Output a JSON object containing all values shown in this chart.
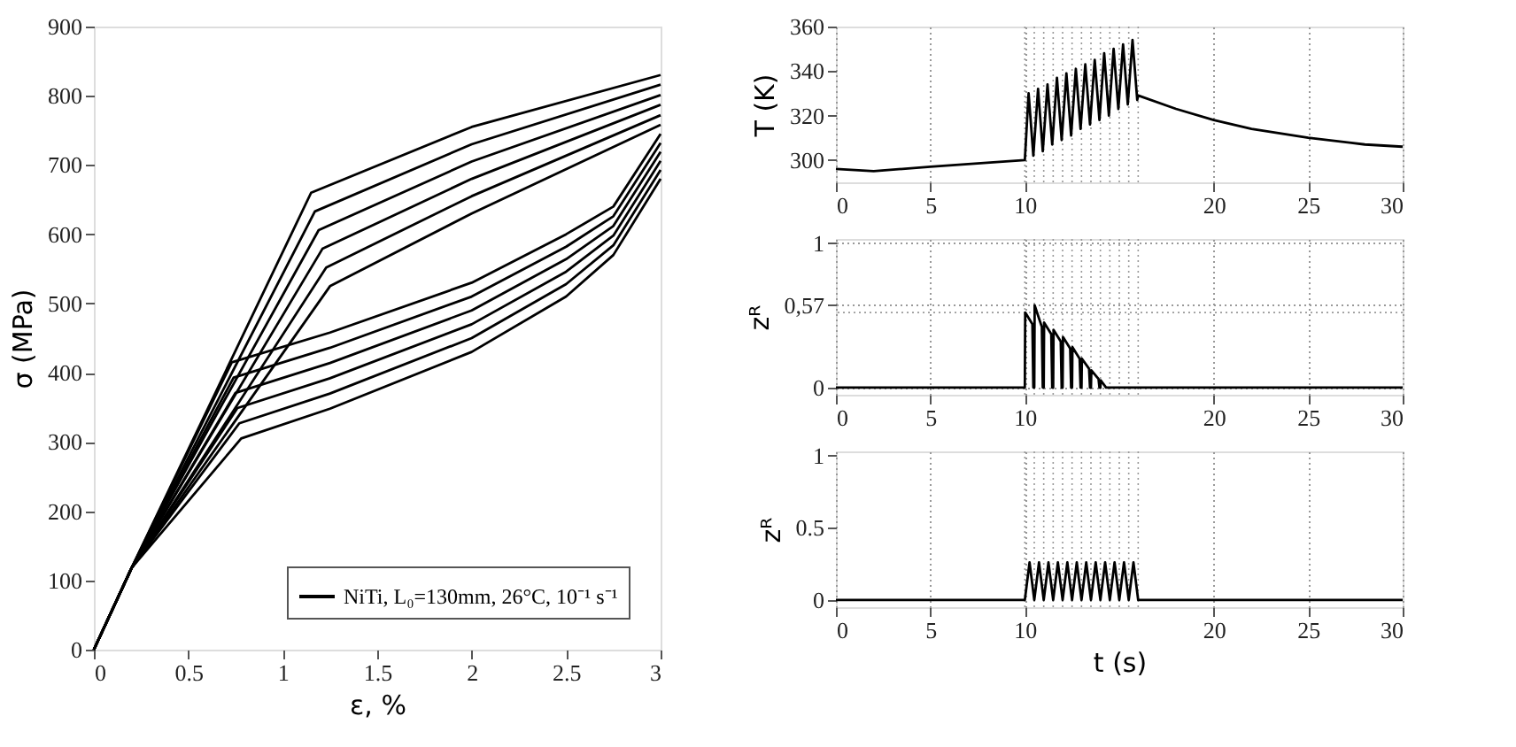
{
  "chart_data": [
    {
      "type": "line",
      "xlabel": "ε, %",
      "ylabel": "σ (MPa)",
      "xlim": [
        0,
        3
      ],
      "ylim": [
        0,
        900
      ],
      "xticks": [
        0,
        0.5,
        1,
        1.5,
        2,
        2.5,
        3
      ],
      "yticks": [
        0,
        100,
        200,
        300,
        400,
        500,
        600,
        700,
        800,
        900
      ],
      "legend": "bottom right",
      "grid": false,
      "series": [
        {
          "name": "NiTi, L₀=130mm, 26°C, 10⁻¹ s⁻¹",
          "color": "#000000",
          "x": [
            0,
            0.2,
            0.78,
            1.25,
            2,
            2.5,
            2.75,
            3,
            null,
            0,
            0.2,
            0.77,
            1.25,
            2,
            2.5,
            2.75,
            3,
            null,
            0,
            0.2,
            0.76,
            1.25,
            2,
            2.5,
            2.75,
            3,
            null,
            0,
            0.2,
            0.75,
            1.25,
            2,
            2.5,
            2.75,
            3,
            null,
            0,
            0.2,
            0.74,
            1.25,
            2,
            2.5,
            2.75,
            3,
            null,
            0,
            0.2,
            0.73,
            1.25,
            2,
            2.5,
            2.75,
            3,
            null,
            0,
            0.2,
            1.25,
            2,
            3,
            null,
            0,
            0.2,
            1.23,
            2,
            3,
            null,
            0,
            0.2,
            1.21,
            2,
            3,
            null,
            0,
            0.2,
            1.19,
            2,
            3,
            null,
            0,
            0.2,
            1.17,
            2,
            3,
            null,
            0,
            0.2,
            1.15,
            2,
            3
          ],
          "values": [
            0,
            118,
            305,
            348,
            430,
            510,
            570,
            680,
            null,
            0,
            118,
            327,
            370,
            450,
            528,
            584,
            693,
            null,
            0,
            118,
            349,
            392,
            470,
            546,
            598,
            706,
            null,
            0,
            118,
            371,
            414,
            490,
            564,
            612,
            719,
            null,
            0,
            118,
            393,
            436,
            510,
            582,
            626,
            732,
            null,
            0,
            118,
            415,
            458,
            530,
            600,
            640,
            745,
            null,
            0,
            118,
            525,
            630,
            758,
            null,
            0,
            118,
            552,
            655,
            772,
            null,
            0,
            118,
            579,
            680,
            787,
            null,
            0,
            118,
            606,
            705,
            801,
            null,
            0,
            118,
            633,
            730,
            816,
            null,
            0,
            118,
            660,
            755,
            830
          ]
        }
      ]
    },
    {
      "type": "line",
      "ylabel": "T (K)",
      "xlim": [
        0,
        30
      ],
      "ylim": [
        290,
        360
      ],
      "xticks": [
        0,
        5,
        10,
        20,
        25,
        30
      ],
      "yticks": [
        300,
        320,
        340,
        360
      ],
      "grid": "x",
      "ref_lines": [
        {
          "axis": "x",
          "value": 10,
          "line_style": "dotted",
          "color": "#999999"
        },
        {
          "axis": "x",
          "value": 10.5,
          "line_style": "dotted",
          "color": "#999999"
        },
        {
          "axis": "x",
          "value": 11,
          "line_style": "dotted",
          "color": "#999999"
        },
        {
          "axis": "x",
          "value": 11.5,
          "line_style": "dotted",
          "color": "#999999"
        },
        {
          "axis": "x",
          "value": 12,
          "line_style": "dotted",
          "color": "#999999"
        },
        {
          "axis": "x",
          "value": 12.5,
          "line_style": "dotted",
          "color": "#999999"
        },
        {
          "axis": "x",
          "value": 13,
          "line_style": "dotted",
          "color": "#999999"
        },
        {
          "axis": "x",
          "value": 13.5,
          "line_style": "dotted",
          "color": "#999999"
        },
        {
          "axis": "x",
          "value": 14,
          "line_style": "dotted",
          "color": "#999999"
        },
        {
          "axis": "x",
          "value": 14.5,
          "line_style": "dotted",
          "color": "#999999"
        },
        {
          "axis": "x",
          "value": 15,
          "line_style": "dotted",
          "color": "#999999"
        },
        {
          "axis": "x",
          "value": 15.5,
          "line_style": "dotted",
          "color": "#999999"
        },
        {
          "axis": "x",
          "value": 16,
          "line_style": "dotted",
          "color": "#999999"
        }
      ],
      "series": [
        {
          "color": "#000000",
          "x": [
            0,
            2,
            5,
            10,
            10.2,
            10.45,
            10.7,
            10.95,
            11.2,
            11.45,
            11.7,
            11.95,
            12.2,
            12.45,
            12.7,
            12.95,
            13.2,
            13.45,
            13.7,
            13.95,
            14.2,
            14.45,
            14.7,
            14.95,
            15.2,
            15.45,
            15.7,
            15.95,
            16,
            18,
            20,
            22,
            25,
            28,
            30
          ],
          "values": [
            296,
            295,
            297,
            300,
            330,
            302,
            332,
            304,
            334,
            307,
            337,
            309,
            339,
            311,
            341,
            314,
            343,
            316,
            345,
            318,
            348,
            320,
            350,
            323,
            352,
            325,
            354,
            327,
            329,
            323,
            318,
            314,
            310,
            307,
            306
          ]
        }
      ]
    },
    {
      "type": "line",
      "ylabel": "zᴿ",
      "xlim": [
        0,
        30
      ],
      "ylim": [
        -0.05,
        1.03
      ],
      "xticks": [
        0,
        5,
        10,
        20,
        25,
        30
      ],
      "yticks": [
        0,
        {
          "value": 0.57,
          "label": "0,57"
        },
        1
      ],
      "grid": true,
      "ref_lines": [
        {
          "axis": "y",
          "value": 0.52,
          "line_style": "dotted",
          "color": "#999999"
        },
        {
          "axis": "x",
          "value": 10,
          "line_style": "dotted",
          "color": "#999999"
        },
        {
          "axis": "x",
          "value": 10.5,
          "line_style": "dotted",
          "color": "#999999"
        },
        {
          "axis": "x",
          "value": 11,
          "line_style": "dotted",
          "color": "#999999"
        },
        {
          "axis": "x",
          "value": 11.5,
          "line_style": "dotted",
          "color": "#999999"
        },
        {
          "axis": "x",
          "value": 12,
          "line_style": "dotted",
          "color": "#999999"
        },
        {
          "axis": "x",
          "value": 12.5,
          "line_style": "dotted",
          "color": "#999999"
        },
        {
          "axis": "x",
          "value": 13,
          "line_style": "dotted",
          "color": "#999999"
        },
        {
          "axis": "x",
          "value": 13.5,
          "line_style": "dotted",
          "color": "#999999"
        },
        {
          "axis": "x",
          "value": 14,
          "line_style": "dotted",
          "color": "#999999"
        },
        {
          "axis": "x",
          "value": 14.5,
          "line_style": "dotted",
          "color": "#999999"
        },
        {
          "axis": "x",
          "value": 15,
          "line_style": "dotted",
          "color": "#999999"
        },
        {
          "axis": "x",
          "value": 15.5,
          "line_style": "dotted",
          "color": "#999999"
        },
        {
          "axis": "x",
          "value": 16,
          "line_style": "dotted",
          "color": "#999999"
        }
      ],
      "series": [
        {
          "color": "#000000",
          "x": [
            0,
            10,
            10.02,
            10.4,
            10.45,
            10.5,
            10.52,
            10.9,
            10.95,
            11,
            11.02,
            11.4,
            11.45,
            11.5,
            11.52,
            11.9,
            11.95,
            12,
            12.02,
            12.4,
            12.45,
            12.5,
            12.52,
            12.9,
            12.95,
            13,
            13.02,
            13.4,
            13.45,
            13.5,
            13.52,
            13.9,
            13.95,
            14,
            14.02,
            14.3,
            30
          ],
          "values": [
            0,
            0,
            0.52,
            0.44,
            0,
            0,
            0.57,
            0.42,
            0,
            0,
            0.45,
            0.37,
            0,
            0,
            0.4,
            0.32,
            0,
            0,
            0.35,
            0.27,
            0,
            0,
            0.28,
            0.2,
            0,
            0,
            0.2,
            0.13,
            0,
            0,
            0.12,
            0.06,
            0,
            0,
            0.05,
            0,
            0
          ]
        }
      ]
    },
    {
      "type": "line",
      "xlabel": "t (s)",
      "ylabel": "zᴿ",
      "xlim": [
        0,
        30
      ],
      "ylim": [
        -0.05,
        1.03
      ],
      "xticks": [
        0,
        5,
        10,
        20,
        25,
        30
      ],
      "yticks": [
        0,
        0.5,
        1
      ],
      "grid": "x",
      "ref_lines": [
        {
          "axis": "x",
          "value": 10,
          "line_style": "dotted",
          "color": "#999999"
        },
        {
          "axis": "x",
          "value": 10.5,
          "line_style": "dotted",
          "color": "#999999"
        },
        {
          "axis": "x",
          "value": 11,
          "line_style": "dotted",
          "color": "#999999"
        },
        {
          "axis": "x",
          "value": 11.5,
          "line_style": "dotted",
          "color": "#999999"
        },
        {
          "axis": "x",
          "value": 12,
          "line_style": "dotted",
          "color": "#999999"
        },
        {
          "axis": "x",
          "value": 12.5,
          "line_style": "dotted",
          "color": "#999999"
        },
        {
          "axis": "x",
          "value": 13,
          "line_style": "dotted",
          "color": "#999999"
        },
        {
          "axis": "x",
          "value": 13.5,
          "line_style": "dotted",
          "color": "#999999"
        },
        {
          "axis": "x",
          "value": 14,
          "line_style": "dotted",
          "color": "#999999"
        },
        {
          "axis": "x",
          "value": 14.5,
          "line_style": "dotted",
          "color": "#999999"
        },
        {
          "axis": "x",
          "value": 15,
          "line_style": "dotted",
          "color": "#999999"
        },
        {
          "axis": "x",
          "value": 15.5,
          "line_style": "dotted",
          "color": "#999999"
        },
        {
          "axis": "x",
          "value": 16,
          "line_style": "dotted",
          "color": "#999999"
        }
      ],
      "series": [
        {
          "color": "#000000",
          "x": [
            0,
            10,
            10.25,
            10.5,
            10.75,
            11,
            11.25,
            11.5,
            11.75,
            12,
            12.25,
            12.5,
            12.75,
            13,
            13.25,
            13.5,
            13.75,
            14,
            14.25,
            14.5,
            14.75,
            15,
            15.25,
            15.5,
            15.75,
            16,
            30
          ],
          "values": [
            0,
            0,
            0.26,
            0,
            0.26,
            0,
            0.26,
            0,
            0.26,
            0,
            0.26,
            0,
            0.26,
            0,
            0.26,
            0,
            0.26,
            0,
            0.26,
            0,
            0.26,
            0,
            0.26,
            0,
            0.26,
            0,
            0
          ]
        }
      ]
    }
  ]
}
